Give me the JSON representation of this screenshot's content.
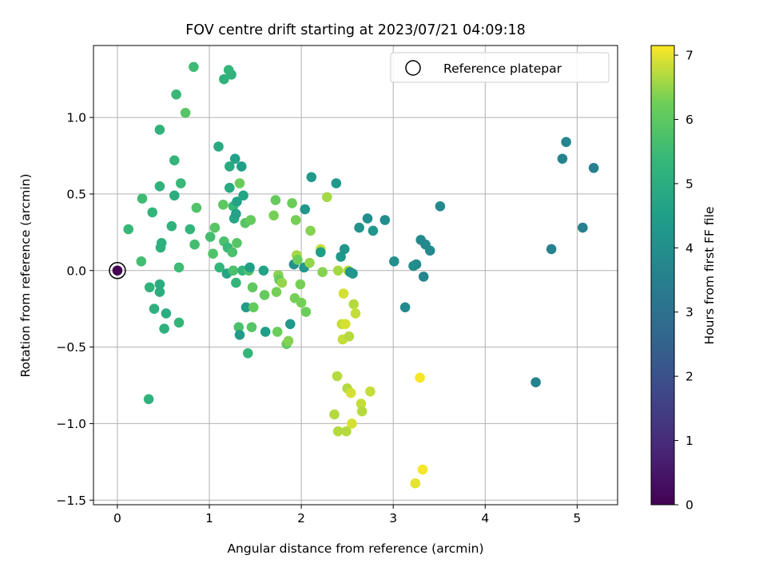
{
  "chart_data": {
    "type": "scatter",
    "title": "FOV centre drift starting at 2023/07/21 04:09:18",
    "xlabel": "Angular distance from reference (arcmin)",
    "ylabel": "Rotation from reference (arcmin)",
    "xlim": [
      -0.26,
      5.44
    ],
    "ylim": [
      -1.53,
      1.47
    ],
    "xticks": [
      0,
      1,
      2,
      3,
      4,
      5
    ],
    "xtick_labels": [
      "0",
      "1",
      "2",
      "3",
      "4",
      "5"
    ],
    "yticks": [
      -1.5,
      -1.0,
      -0.5,
      0.0,
      0.5,
      1.0
    ],
    "ytick_labels": [
      "−1.5",
      "−1.0",
      "−0.5",
      "0.0",
      "0.5",
      "1.0"
    ],
    "grid": true,
    "legend": {
      "position": "top-right",
      "entries": [
        "Reference platepar"
      ]
    },
    "colorbar": {
      "label": "Hours from first FF file",
      "range": [
        0,
        7.15
      ],
      "ticks": [
        0,
        1,
        2,
        3,
        4,
        5,
        6,
        7
      ],
      "tick_labels": [
        "0",
        "1",
        "2",
        "3",
        "4",
        "5",
        "6",
        "7"
      ],
      "colormap": "viridis"
    },
    "reference_point": {
      "x": 0.0,
      "y": 0.0,
      "hours": 0.0
    },
    "points": [
      [
        0.12,
        0.27,
        5.4
      ],
      [
        0.27,
        0.47,
        5.5
      ],
      [
        0.26,
        0.06,
        5.6
      ],
      [
        0.38,
        0.38,
        5.3
      ],
      [
        0.35,
        -0.11,
        5.2
      ],
      [
        0.4,
        -0.25,
        5.1
      ],
      [
        0.46,
        -0.09,
        5.0
      ],
      [
        0.46,
        -0.14,
        5.0
      ],
      [
        0.47,
        0.15,
        5.1
      ],
      [
        0.48,
        0.18,
        5.1
      ],
      [
        0.46,
        0.55,
        5.2
      ],
      [
        0.46,
        0.92,
        5.2
      ],
      [
        0.51,
        -0.38,
        5.1
      ],
      [
        0.53,
        -0.28,
        5.0
      ],
      [
        0.59,
        0.29,
        5.2
      ],
      [
        0.62,
        0.49,
        5.0
      ],
      [
        0.62,
        0.72,
        5.3
      ],
      [
        0.64,
        1.15,
        5.4
      ],
      [
        0.67,
        0.02,
        5.5
      ],
      [
        0.67,
        -0.34,
        5.3
      ],
      [
        0.69,
        0.57,
        5.4
      ],
      [
        0.74,
        1.03,
        5.9
      ],
      [
        0.79,
        0.27,
        5.3
      ],
      [
        0.83,
        1.33,
        5.5
      ],
      [
        0.84,
        0.17,
        5.6
      ],
      [
        0.86,
        0.41,
        5.8
      ],
      [
        0.34,
        -0.84,
        5.2
      ],
      [
        1.01,
        0.22,
        5.6
      ],
      [
        1.04,
        0.11,
        5.8
      ],
      [
        1.06,
        0.28,
        5.9
      ],
      [
        1.1,
        0.81,
        4.9
      ],
      [
        1.11,
        0.02,
        5.3
      ],
      [
        1.15,
        0.43,
        6.0
      ],
      [
        1.16,
        0.19,
        5.7
      ],
      [
        1.16,
        1.25,
        5.1
      ],
      [
        1.19,
        -0.02,
        4.7
      ],
      [
        1.2,
        0.15,
        5.4
      ],
      [
        1.21,
        1.31,
        5.3
      ],
      [
        1.22,
        0.68,
        4.9
      ],
      [
        1.22,
        0.54,
        4.9
      ],
      [
        1.24,
        1.28,
        5.2
      ],
      [
        1.25,
        0.12,
        5.7
      ],
      [
        1.26,
        0.0,
        5.7
      ],
      [
        1.26,
        0.42,
        5.4
      ],
      [
        1.27,
        0.34,
        4.8
      ],
      [
        1.28,
        0.73,
        4.6
      ],
      [
        1.29,
        0.37,
        4.6
      ],
      [
        1.29,
        -0.08,
        5.3
      ],
      [
        1.3,
        0.18,
        5.9
      ],
      [
        1.3,
        0.45,
        4.6
      ],
      [
        1.32,
        -0.37,
        5.7
      ],
      [
        1.33,
        0.57,
        6.2
      ],
      [
        1.33,
        -0.42,
        4.4
      ],
      [
        1.35,
        0.68,
        4.5
      ],
      [
        1.36,
        0.0,
        5.3
      ],
      [
        1.37,
        0.49,
        4.7
      ],
      [
        1.39,
        0.31,
        5.9
      ],
      [
        1.4,
        -0.24,
        4.4
      ],
      [
        1.42,
        -0.54,
        5.3
      ],
      [
        1.43,
        0.0,
        5.8
      ],
      [
        1.44,
        0.02,
        4.5
      ],
      [
        1.45,
        0.33,
        6.1
      ],
      [
        1.46,
        -0.37,
        5.9
      ],
      [
        1.47,
        -0.11,
        6.0
      ],
      [
        1.48,
        -0.24,
        6.1
      ],
      [
        1.59,
        0.0,
        4.6
      ],
      [
        1.6,
        -0.16,
        6.1
      ],
      [
        1.61,
        -0.4,
        4.5
      ],
      [
        1.7,
        0.36,
        6.3
      ],
      [
        1.72,
        0.46,
        6.1
      ],
      [
        1.73,
        -0.14,
        6.3
      ],
      [
        1.74,
        -0.4,
        6.2
      ],
      [
        1.75,
        -0.03,
        6.4
      ],
      [
        1.76,
        -0.06,
        6.1
      ],
      [
        1.79,
        -0.08,
        6.5
      ],
      [
        1.84,
        -0.48,
        6.1
      ],
      [
        1.86,
        -0.46,
        6.4
      ],
      [
        1.88,
        -0.35,
        4.3
      ],
      [
        1.9,
        0.44,
        6.2
      ],
      [
        1.92,
        0.04,
        4.1
      ],
      [
        1.93,
        -0.18,
        6.3
      ],
      [
        1.94,
        0.33,
        6.3
      ],
      [
        1.95,
        0.1,
        6.6
      ],
      [
        1.96,
        0.07,
        6.2
      ],
      [
        1.99,
        -0.09,
        6.3
      ],
      [
        2.0,
        -0.21,
        6.3
      ],
      [
        2.03,
        0.02,
        4.3
      ],
      [
        2.04,
        0.4,
        4.2
      ],
      [
        2.05,
        -0.27,
        6.2
      ],
      [
        2.09,
        0.05,
        6.5
      ],
      [
        2.1,
        0.26,
        6.4
      ],
      [
        2.11,
        0.61,
        4.3
      ],
      [
        2.21,
        0.14,
        6.8
      ],
      [
        2.21,
        0.12,
        4.5
      ],
      [
        2.23,
        -0.01,
        6.4
      ],
      [
        2.28,
        0.48,
        6.6
      ],
      [
        2.36,
        -0.94,
        6.7
      ],
      [
        2.38,
        0.57,
        4.3
      ],
      [
        2.39,
        -0.69,
        6.7
      ],
      [
        2.4,
        0.0,
        6.6
      ],
      [
        2.4,
        -1.05,
        6.7
      ],
      [
        2.43,
        0.09,
        4.3
      ],
      [
        2.44,
        -0.35,
        6.8
      ],
      [
        2.45,
        -0.45,
        6.8
      ],
      [
        2.46,
        -0.15,
        6.9
      ],
      [
        2.47,
        0.14,
        4.2
      ],
      [
        2.48,
        -0.35,
        6.9
      ],
      [
        2.49,
        -1.05,
        6.7
      ],
      [
        2.5,
        -0.77,
        6.7
      ],
      [
        2.51,
        0.0,
        6.7
      ],
      [
        2.52,
        -0.43,
        6.7
      ],
      [
        2.53,
        -0.01,
        4.2
      ],
      [
        2.54,
        -0.8,
        6.9
      ],
      [
        2.55,
        -1.0,
        6.9
      ],
      [
        2.56,
        -0.02,
        4.2
      ],
      [
        2.57,
        -0.22,
        6.7
      ],
      [
        2.59,
        -0.28,
        6.8
      ],
      [
        2.63,
        0.28,
        4.1
      ],
      [
        2.65,
        -0.87,
        6.8
      ],
      [
        2.66,
        -0.92,
        6.7
      ],
      [
        2.72,
        0.34,
        4.0
      ],
      [
        2.75,
        -0.79,
        6.8
      ],
      [
        2.78,
        0.26,
        4.2
      ],
      [
        2.91,
        0.33,
        4.0
      ],
      [
        3.01,
        0.06,
        4.0
      ],
      [
        3.13,
        -0.24,
        3.8
      ],
      [
        3.22,
        0.03,
        4.0
      ],
      [
        3.25,
        0.04,
        3.9
      ],
      [
        3.24,
        -1.39,
        7.0
      ],
      [
        3.29,
        -0.7,
        7.1
      ],
      [
        3.3,
        0.2,
        3.8
      ],
      [
        3.32,
        -1.3,
        7.1
      ],
      [
        3.33,
        -0.04,
        3.7
      ],
      [
        3.35,
        0.17,
        3.8
      ],
      [
        3.4,
        0.13,
        3.8
      ],
      [
        3.51,
        0.42,
        3.8
      ],
      [
        4.55,
        -0.73,
        3.6
      ],
      [
        4.72,
        0.14,
        3.6
      ],
      [
        4.84,
        0.73,
        3.6
      ],
      [
        4.88,
        0.84,
        3.7
      ],
      [
        5.06,
        0.28,
        3.5
      ],
      [
        5.18,
        0.67,
        3.5
      ]
    ]
  }
}
